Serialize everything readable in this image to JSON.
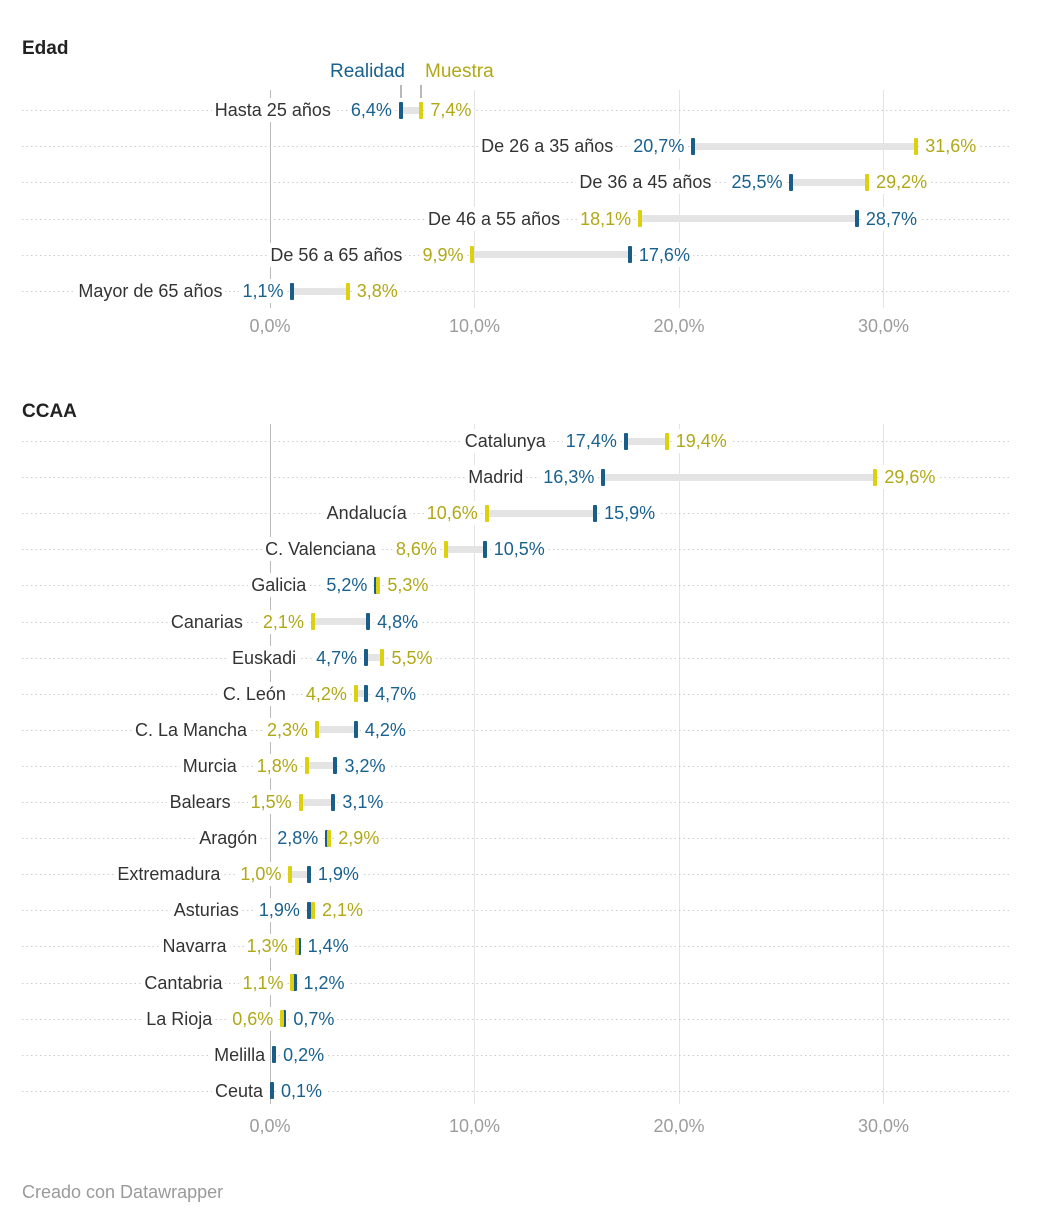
{
  "footer": "Creado con Datawrapper",
  "legend": {
    "realidad": "Realidad",
    "muestra": "Muestra"
  },
  "colors": {
    "realidad_text": "#19618f",
    "realidad_marker": "#1a5d89",
    "muestra_text": "#b0a816",
    "muestra_marker": "#ddd00e",
    "category_text": "#333333",
    "axis_text": "#9c9c9c",
    "gridline": "#e3e3e3",
    "gridline_zero": "#b9b9b9",
    "row_dotted_line": "#cccccc",
    "connector": "#e4e4e4"
  },
  "chart_data": [
    {
      "type": "range",
      "title": "Edad",
      "legend_position": "top",
      "x_ticks": [
        "0,0%",
        "10,0%",
        "20,0%",
        "30,0%"
      ],
      "x_tick_values": [
        0,
        10,
        20,
        30
      ],
      "xlim": [
        0,
        36
      ],
      "grid": true,
      "series_names": [
        "Realidad",
        "Muestra"
      ],
      "rows": [
        {
          "label": "Hasta 25 años",
          "realidad": 6.4,
          "muestra": 7.4,
          "realidad_label": "6,4%",
          "muestra_label": "7,4%"
        },
        {
          "label": "De 26 a 35 años",
          "realidad": 20.7,
          "muestra": 31.6,
          "realidad_label": "20,7%",
          "muestra_label": "31,6%"
        },
        {
          "label": "De 36 a 45 años",
          "realidad": 25.5,
          "muestra": 29.2,
          "realidad_label": "25,5%",
          "muestra_label": "29,2%"
        },
        {
          "label": "De 46 a 55 años",
          "realidad": 28.7,
          "muestra": 18.1,
          "realidad_label": "28,7%",
          "muestra_label": "18,1%"
        },
        {
          "label": "De 56 a 65 años",
          "realidad": 17.6,
          "muestra": 9.9,
          "realidad_label": "17,6%",
          "muestra_label": "9,9%"
        },
        {
          "label": "Mayor de 65 años",
          "realidad": 1.1,
          "muestra": 3.8,
          "realidad_label": "1,1%",
          "muestra_label": "3,8%"
        }
      ]
    },
    {
      "type": "range",
      "title": "CCAA",
      "x_ticks": [
        "0,0%",
        "10,0%",
        "20,0%",
        "30,0%"
      ],
      "x_tick_values": [
        0,
        10,
        20,
        30
      ],
      "xlim": [
        0,
        36
      ],
      "grid": true,
      "series_names": [
        "Realidad",
        "Muestra"
      ],
      "rows": [
        {
          "label": "Catalunya",
          "realidad": 17.4,
          "muestra": 19.4,
          "realidad_label": "17,4%",
          "muestra_label": "19,4%"
        },
        {
          "label": "Madrid",
          "realidad": 16.3,
          "muestra": 29.6,
          "realidad_label": "16,3%",
          "muestra_label": "29,6%"
        },
        {
          "label": "Andalucía",
          "realidad": 15.9,
          "muestra": 10.6,
          "realidad_label": "15,9%",
          "muestra_label": "10,6%"
        },
        {
          "label": "C. Valenciana",
          "realidad": 10.5,
          "muestra": 8.6,
          "realidad_label": "10,5%",
          "muestra_label": "8,6%"
        },
        {
          "label": "Galicia",
          "realidad": 5.2,
          "muestra": 5.3,
          "realidad_label": "5,2%",
          "muestra_label": "5,3%"
        },
        {
          "label": "Canarias",
          "realidad": 4.8,
          "muestra": 2.1,
          "realidad_label": "4,8%",
          "muestra_label": "2,1%"
        },
        {
          "label": "Euskadi",
          "realidad": 4.7,
          "muestra": 5.5,
          "realidad_label": "4,7%",
          "muestra_label": "5,5%"
        },
        {
          "label": "C. León",
          "realidad": 4.7,
          "muestra": 4.2,
          "realidad_label": "4,7%",
          "muestra_label": "4,2%"
        },
        {
          "label": "C. La Mancha",
          "realidad": 4.2,
          "muestra": 2.3,
          "realidad_label": "4,2%",
          "muestra_label": "2,3%"
        },
        {
          "label": "Murcia",
          "realidad": 3.2,
          "muestra": 1.8,
          "realidad_label": "3,2%",
          "muestra_label": "1,8%"
        },
        {
          "label": "Balears",
          "realidad": 3.1,
          "muestra": 1.5,
          "realidad_label": "3,1%",
          "muestra_label": "1,5%"
        },
        {
          "label": "Aragón",
          "realidad": 2.8,
          "muestra": 2.9,
          "realidad_label": "2,8%",
          "muestra_label": "2,9%"
        },
        {
          "label": "Extremadura",
          "realidad": 1.9,
          "muestra": 1.0,
          "realidad_label": "1,9%",
          "muestra_label": "1,0%"
        },
        {
          "label": "Asturias",
          "realidad": 1.9,
          "muestra": 2.1,
          "realidad_label": "1,9%",
          "muestra_label": "2,1%"
        },
        {
          "label": "Navarra",
          "realidad": 1.4,
          "muestra": 1.3,
          "realidad_label": "1,4%",
          "muestra_label": "1,3%"
        },
        {
          "label": "Cantabria",
          "realidad": 1.2,
          "muestra": 1.1,
          "realidad_label": "1,2%",
          "muestra_label": "1,1%"
        },
        {
          "label": "La Rioja",
          "realidad": 0.7,
          "muestra": 0.6,
          "realidad_label": "0,7%",
          "muestra_label": "0,6%"
        },
        {
          "label": "Melilla",
          "realidad": 0.2,
          "muestra": null,
          "realidad_label": "0,2%",
          "muestra_label": null
        },
        {
          "label": "Ceuta",
          "realidad": 0.1,
          "muestra": null,
          "realidad_label": "0,1%",
          "muestra_label": null
        }
      ]
    }
  ]
}
